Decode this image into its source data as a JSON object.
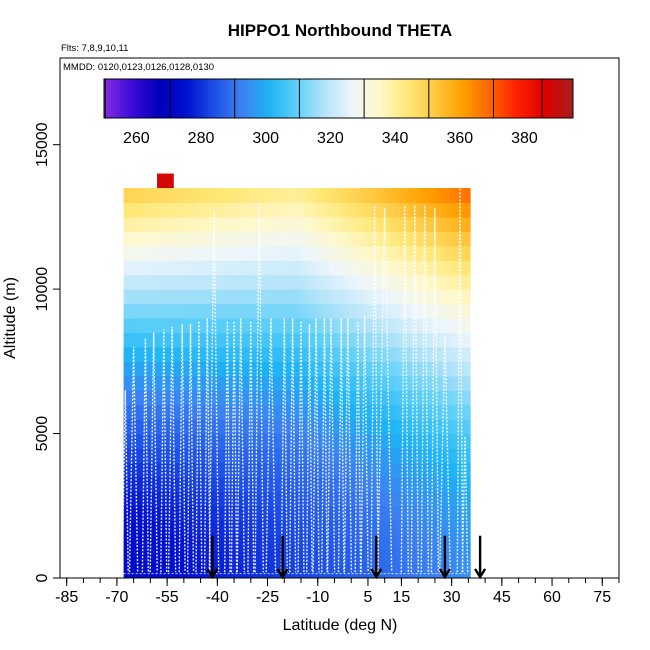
{
  "chart_data": {
    "type": "heatmap",
    "title": "HIPPO1 Northbound THETA",
    "flights_label": "Flts: 7,8,9,10,11",
    "dates_label": "MMDD: 0120,0123,0126,0128,0130",
    "xlabel": "Latitude (deg N)",
    "ylabel": "Altitude (m)",
    "xlim": [
      -87,
      80
    ],
    "ylim": [
      0,
      18000
    ],
    "x_ticks": [
      -85,
      -70,
      -55,
      -40,
      -25,
      -10,
      5,
      15,
      30,
      45,
      60,
      75
    ],
    "x_tick_labels": [
      "-85",
      "-70",
      "-55",
      "-40",
      "-25",
      "-10",
      "5",
      "15",
      "30",
      "45",
      "60",
      "75"
    ],
    "y_ticks": [
      0,
      5000,
      10000,
      15000
    ],
    "y_tick_labels": [
      "0",
      "5000",
      "10000",
      "15000"
    ],
    "colorbar": {
      "range": [
        250,
        395
      ],
      "ticks": [
        260,
        280,
        300,
        320,
        340,
        360,
        380
      ],
      "tick_labels": [
        "260",
        "280",
        "300",
        "320",
        "340",
        "360",
        "380"
      ],
      "colors": [
        "#8a2be2",
        "#3a0cd9",
        "#0000b8",
        "#0010d0",
        "#1e50e6",
        "#3c82f0",
        "#1eb4f5",
        "#5fd0f8",
        "#b4e4fa",
        "#eef6fc",
        "#fff8c8",
        "#ffe878",
        "#ffc840",
        "#ffa000",
        "#ff6400",
        "#ff1e00",
        "#dc0000",
        "#aa1e1e"
      ]
    },
    "field": {
      "lat_range": [
        -68,
        35
      ],
      "alt_top": 13500,
      "theta_surface": [
        272,
        282,
        295
      ],
      "theta_top": [
        352,
        342,
        370
      ],
      "polar_cap": {
        "lat_range": [
          -58,
          -53
        ],
        "alt_range": [
          13500,
          14000
        ],
        "theta": 388
      }
    },
    "profile_latitudes": [
      -67.5,
      -65,
      -61.5,
      -59,
      -56,
      -53.5,
      -50.5,
      -48,
      -45.5,
      -43,
      -41,
      -37,
      -35,
      -33,
      -30,
      -27.5,
      -24,
      -20,
      -17.5,
      -15,
      -12.5,
      -10.5,
      -8,
      -6,
      -3,
      -1,
      2,
      4,
      7,
      10,
      16,
      19,
      22,
      25,
      28,
      32.5,
      34
    ],
    "profile_tops": [
      6500,
      8000,
      8300,
      8500,
      8600,
      8700,
      8800,
      8800,
      8900,
      9000,
      12700,
      8900,
      8900,
      9000,
      8900,
      13000,
      9000,
      9000,
      9000,
      8900,
      8800,
      9000,
      9000,
      9000,
      9000,
      9000,
      8900,
      9100,
      12900,
      12800,
      12900,
      12900,
      12900,
      12800,
      8400,
      13500,
      4900
    ],
    "arrow_latitudes": [
      -41.5,
      -20.5,
      7.5,
      28.0,
      38.5
    ],
    "arrow_range_m": [
      700,
      0
    ]
  }
}
